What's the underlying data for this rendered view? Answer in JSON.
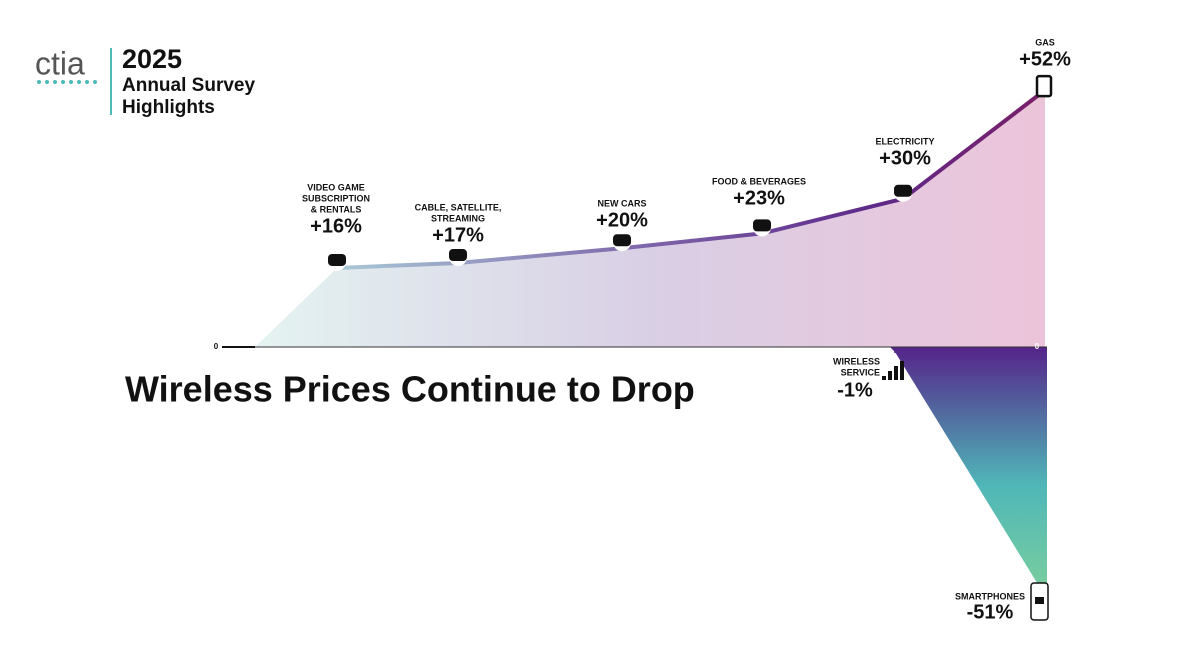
{
  "header": {
    "logo": "ctia",
    "year": "2025",
    "subtitle": [
      "Annual Survey",
      "Highlights"
    ]
  },
  "chart_data": {
    "type": "area",
    "title": "Wireless Prices Continue to Drop",
    "baseline": 0,
    "categories": [
      [
        "VIDEO GAME",
        "SUBSCRIPTION",
        "& RENTALS"
      ],
      [
        "CABLE, SATELLITE,",
        "STREAMING"
      ],
      [
        "NEW CARS"
      ],
      [
        "FOOD & BEVERAGES"
      ],
      [
        "ELECTRICITY"
      ],
      [
        "GAS"
      ],
      [
        "WIRELESS",
        "SERVICE"
      ],
      [
        "SMARTPHONES"
      ]
    ],
    "values": [
      16,
      17,
      20,
      23,
      30,
      52,
      -1,
      -51
    ],
    "value_labels": [
      "+16%",
      "+17%",
      "+20%",
      "+23%",
      "+30%",
      "+52%",
      "-1%",
      "-51%"
    ]
  }
}
